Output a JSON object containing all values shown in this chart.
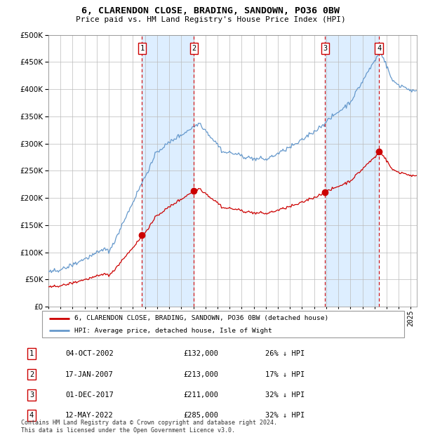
{
  "title": "6, CLARENDON CLOSE, BRADING, SANDOWN, PO36 0BW",
  "subtitle": "Price paid vs. HM Land Registry's House Price Index (HPI)",
  "sale_dates_num": [
    2002.753,
    2007.046,
    2017.917,
    2022.369
  ],
  "sale_prices": [
    132000,
    213000,
    211000,
    285000
  ],
  "sale_labels": [
    "1",
    "2",
    "3",
    "4"
  ],
  "sale_hpi_pct": [
    "26% ↓ HPI",
    "17% ↓ HPI",
    "32% ↓ HPI",
    "32% ↓ HPI"
  ],
  "sale_dates_display": [
    "04-OCT-2002",
    "17-JAN-2007",
    "01-DEC-2017",
    "12-MAY-2022"
  ],
  "sale_prices_display": [
    "£132,000",
    "£213,000",
    "£211,000",
    "£285,000"
  ],
  "legend_property": "6, CLARENDON CLOSE, BRADING, SANDOWN, PO36 0BW (detached house)",
  "legend_hpi": "HPI: Average price, detached house, Isle of Wight",
  "footer": "Contains HM Land Registry data © Crown copyright and database right 2024.\nThis data is licensed under the Open Government Licence v3.0.",
  "property_line_color": "#cc0000",
  "hpi_line_color": "#6699cc",
  "shade_color": "#ddeeff",
  "vline_color": "#cc0000",
  "grid_color": "#bbbbbb",
  "ylim": [
    0,
    500000
  ],
  "yticks": [
    0,
    50000,
    100000,
    150000,
    200000,
    250000,
    300000,
    350000,
    400000,
    450000,
    500000
  ],
  "xlim_start": 1995.0,
  "xlim_end": 2025.5
}
